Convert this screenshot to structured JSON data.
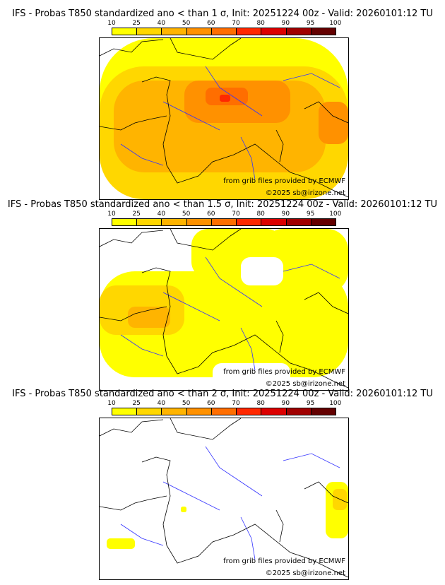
{
  "panels": [
    {
      "title": "IFS - Probas T850  standardized ano < than 1 σ, Init: 20251224 00z - Valid: 20260101:12 TU",
      "sigma": "1"
    },
    {
      "title": "IFS - Probas T850  standardized ano < than 1.5 σ, Init: 20251224 00z - Valid: 20260101:12 TU",
      "sigma": "1.5"
    },
    {
      "title": "IFS - Probas T850  standardized ano < than 2 σ, Init: 20251224 00z - Valid: 20260101:12 TU",
      "sigma": "2"
    }
  ],
  "colorbar": {
    "ticks": [
      "10",
      "25",
      "40",
      "50",
      "60",
      "70",
      "80",
      "90",
      "95",
      "100"
    ],
    "colors": [
      "#ffff00",
      "#ffd700",
      "#ffb400",
      "#ff9100",
      "#ff6e00",
      "#ff2800",
      "#dc0000",
      "#a00000",
      "#640000"
    ]
  },
  "credits": {
    "source": "from grib files provided by ECMWF",
    "copyright": "©2025 sb@irizone.net"
  }
}
